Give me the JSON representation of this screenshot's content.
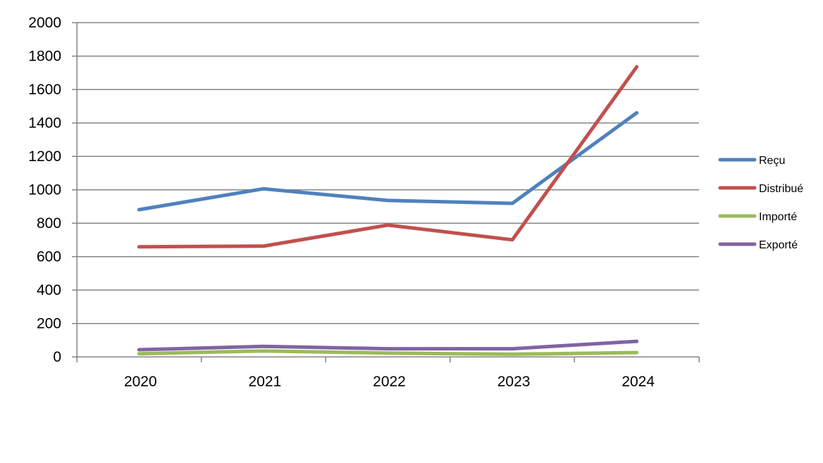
{
  "chart_data": {
    "type": "line",
    "categories": [
      "2020",
      "2021",
      "2022",
      "2023",
      "2024"
    ],
    "series": [
      {
        "name": "Reçu",
        "values": [
          880,
          1005,
          935,
          918,
          1460
        ],
        "color": "#4F81BD"
      },
      {
        "name": "Distribué",
        "values": [
          658,
          662,
          788,
          700,
          1735
        ],
        "color": "#C0504D"
      },
      {
        "name": "Importé",
        "values": [
          18,
          35,
          22,
          15,
          25
        ],
        "color": "#9BBB59"
      },
      {
        "name": "Exporté",
        "values": [
          42,
          62,
          48,
          48,
          92
        ],
        "color": "#8064A2"
      }
    ],
    "y_ticks": [
      "0",
      "200",
      "400",
      "600",
      "800",
      "1000",
      "1200",
      "1400",
      "1600",
      "1800",
      "2000"
    ],
    "ylim": [
      0,
      2000
    ],
    "grid": true,
    "legend_position": "right",
    "title": "",
    "xlabel": "",
    "ylabel": ""
  }
}
